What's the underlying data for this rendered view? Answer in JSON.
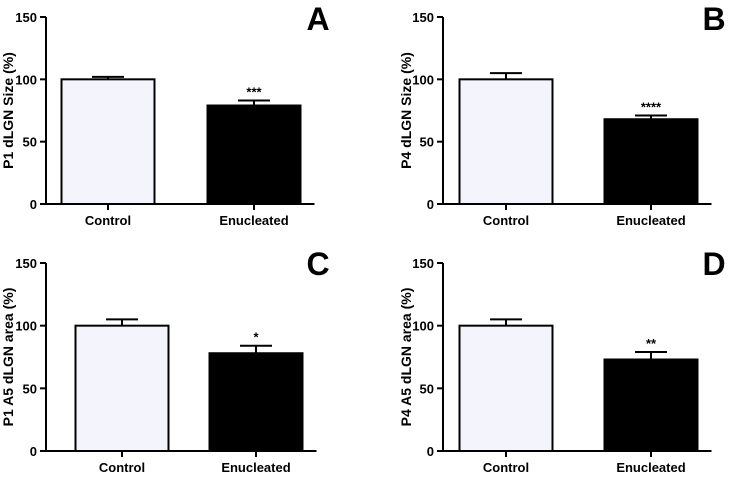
{
  "chart_data": [
    {
      "panel": "A",
      "type": "bar",
      "ylabel": "P1 dLGN Size (%)",
      "categories": [
        "Control",
        "Enucleated"
      ],
      "values": [
        100,
        79
      ],
      "errors": [
        2,
        4
      ],
      "significance": [
        "",
        "***"
      ],
      "ylim": [
        0,
        150
      ],
      "yticks": [
        "0",
        "50",
        "100",
        "150"
      ],
      "bar_colors": [
        "#f4f4fd",
        "#000000"
      ]
    },
    {
      "panel": "B",
      "type": "bar",
      "ylabel": "P4 dLGN Size (%)",
      "categories": [
        "Control",
        "Enucleated"
      ],
      "values": [
        100,
        68
      ],
      "errors": [
        5,
        3
      ],
      "significance": [
        "",
        "****"
      ],
      "ylim": [
        0,
        150
      ],
      "yticks": [
        "0",
        "50",
        "100",
        "150"
      ],
      "bar_colors": [
        "#f4f4fd",
        "#000000"
      ]
    },
    {
      "panel": "C",
      "type": "bar",
      "ylabel": "P1 A5 dLGN area (%)",
      "categories": [
        "Control",
        "Enucleated"
      ],
      "values": [
        100,
        78
      ],
      "errors": [
        5,
        6
      ],
      "significance": [
        "",
        "*"
      ],
      "ylim": [
        0,
        150
      ],
      "yticks": [
        "0",
        "50",
        "100",
        "150"
      ],
      "bar_colors": [
        "#f4f4fd",
        "#000000"
      ]
    },
    {
      "panel": "D",
      "type": "bar",
      "ylabel": "P4 A5 dLGN area (%)",
      "categories": [
        "Control",
        "Enucleated"
      ],
      "values": [
        100,
        73
      ],
      "errors": [
        5,
        6
      ],
      "significance": [
        "",
        "**"
      ],
      "ylim": [
        0,
        150
      ],
      "yticks": [
        "0",
        "50",
        "100",
        "150"
      ],
      "bar_colors": [
        "#f4f4fd",
        "#000000"
      ]
    }
  ]
}
